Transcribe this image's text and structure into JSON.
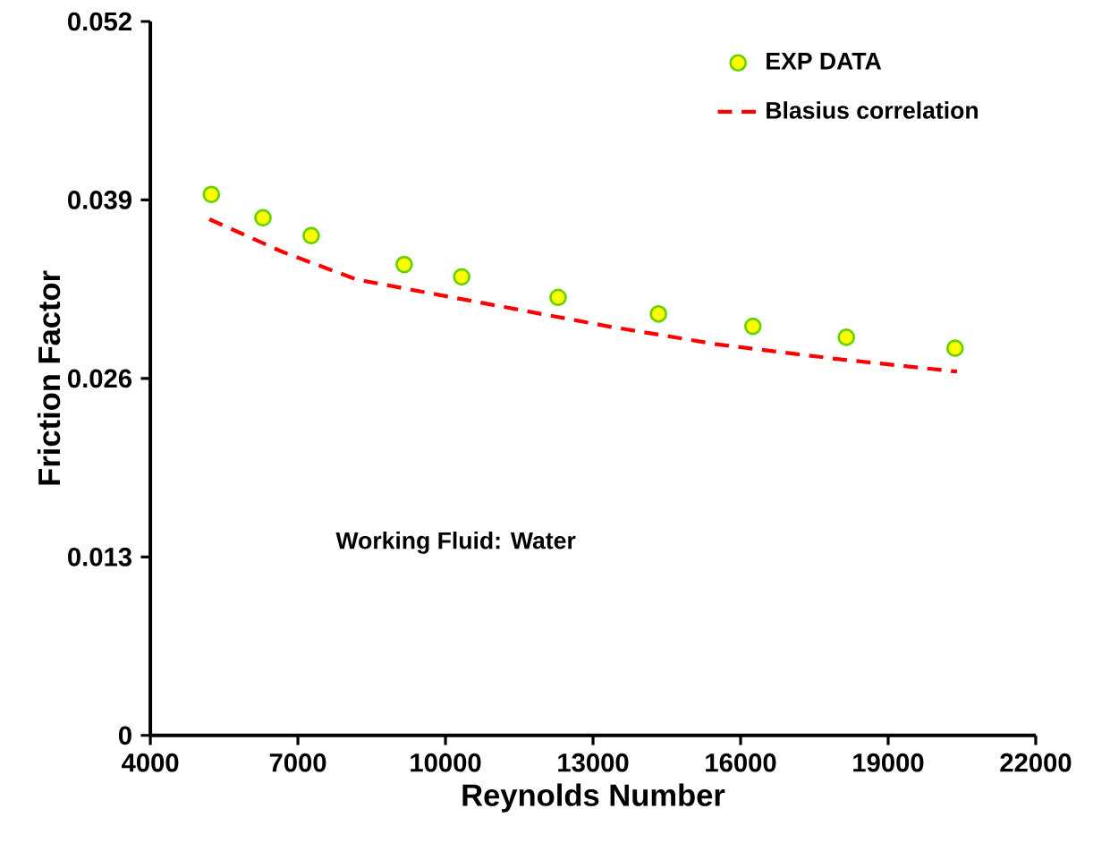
{
  "chart_data": {
    "type": "scatter",
    "xlabel": "Reynolds Number",
    "ylabel": "Friction Factor",
    "xlim": [
      4000,
      22000
    ],
    "xticks": [
      4000,
      7000,
      10000,
      13000,
      16000,
      19000,
      22000
    ],
    "ylim": [
      0,
      0.052
    ],
    "yticks": [
      0,
      0.013,
      0.026,
      0.039,
      0.052
    ],
    "grid": false,
    "legend": "top right",
    "marker": "circle",
    "annotations": [
      "Working Fluid: Water"
    ],
    "series": [
      {
        "name": "EXP DATA",
        "color": "#ffff00",
        "x": [
          5240,
          6290,
          7270,
          9160,
          10330,
          12290,
          14330,
          16250,
          18150,
          20360
        ],
        "values": [
          0.0394,
          0.0377,
          0.0364,
          0.0343,
          0.0334,
          0.0319,
          0.0307,
          0.0298,
          0.029,
          0.0282
        ]
      },
      {
        "name": "Blasius correlation",
        "type": "line",
        "marker": "none",
        "line_style": "dashed",
        "color": "#ff0000",
        "x": [
          5200,
          6700,
          8200,
          13300,
          15500,
          18000,
          20400
        ],
        "values": [
          0.0376,
          0.0352,
          0.0332,
          0.0298,
          0.0285,
          0.0274,
          0.0265
        ]
      }
    ]
  }
}
